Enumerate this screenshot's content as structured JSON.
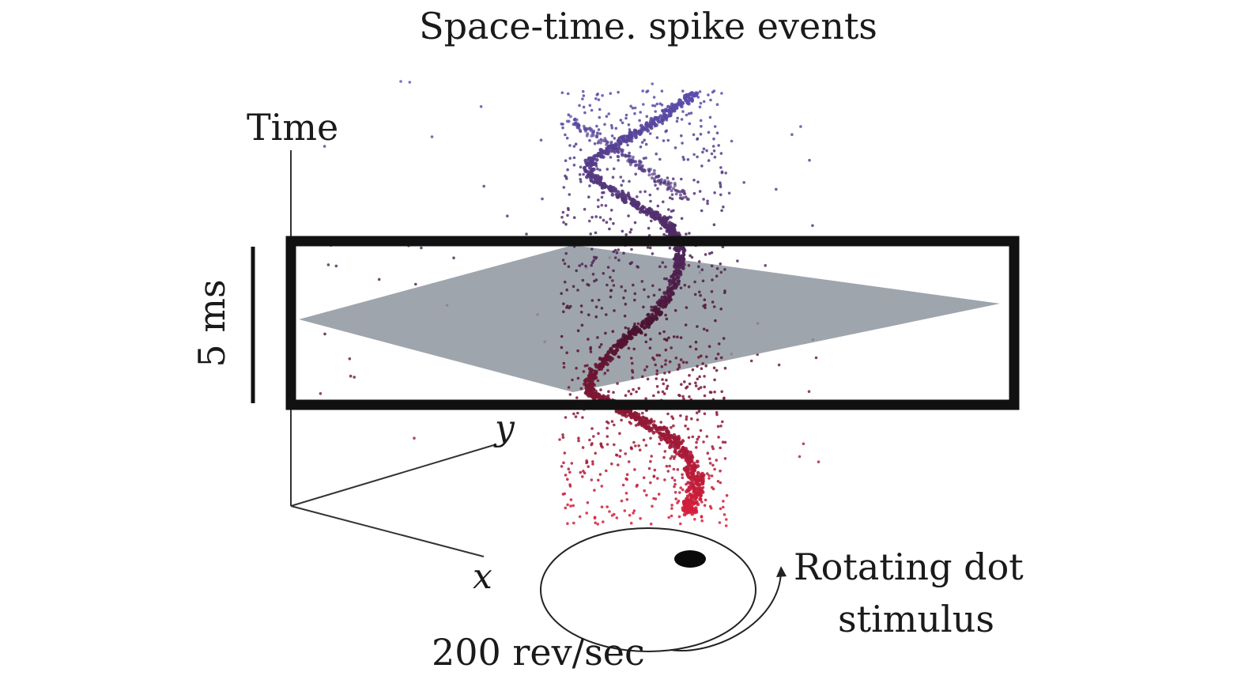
{
  "title": "Space-time. spike events",
  "axes": {
    "time_label": "Time",
    "x_label": "x",
    "y_label": "y"
  },
  "scale_bar": {
    "label": "5 ms"
  },
  "stimulus": {
    "label_line1": "Rotating dot",
    "label_line2": "stimulus",
    "rate_label": "200 rev/sec"
  },
  "colors": {
    "early_events": "#5a4fb0",
    "middle_events": "#4a1230",
    "late_events": "#e0203c",
    "time_slice_plane": "#8e959e",
    "highlight_box": "#111111"
  }
}
